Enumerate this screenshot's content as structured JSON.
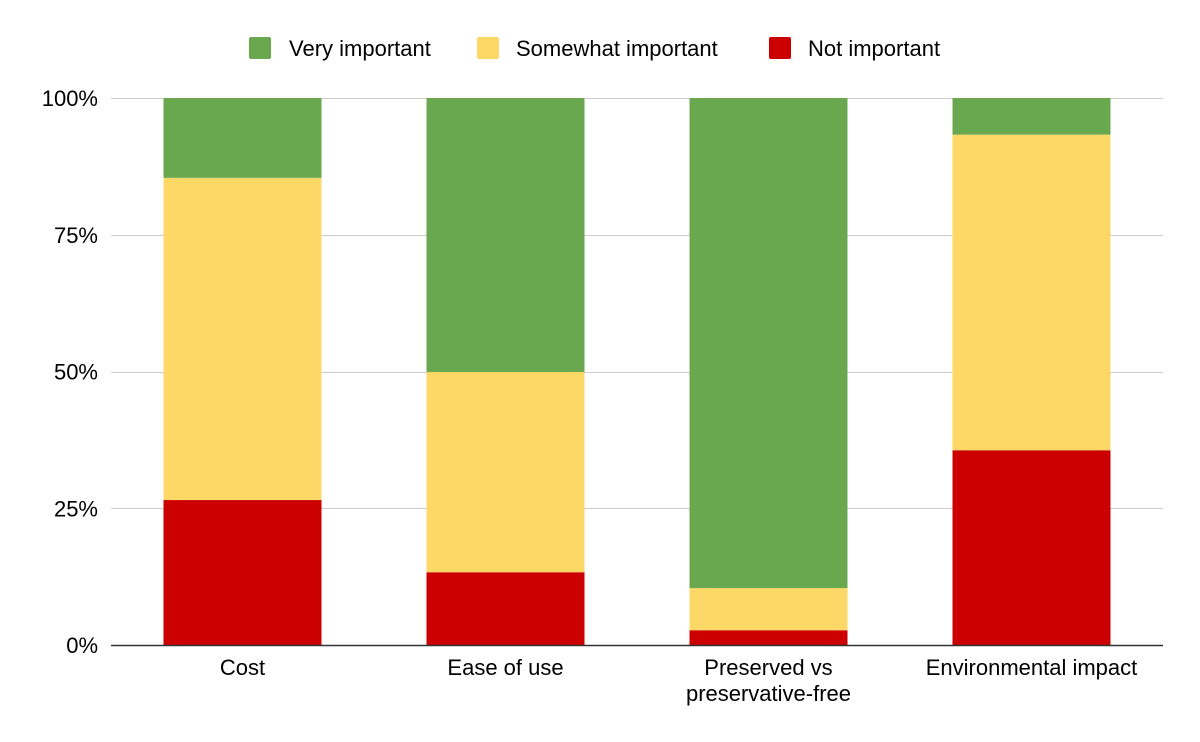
{
  "chart_data": {
    "type": "bar",
    "stacked": true,
    "normalized": true,
    "categories": [
      [
        "Cost"
      ],
      [
        "Ease of use"
      ],
      [
        "Preserved vs",
        "preservative-free"
      ],
      [
        "Environmental impact"
      ]
    ],
    "series": [
      {
        "name": "Not important",
        "color": "#cc0000",
        "values": [
          26.5,
          13.3,
          2.7,
          35.6
        ]
      },
      {
        "name": "Somewhat important",
        "color": "#fdd866",
        "values": [
          58.9,
          36.6,
          7.7,
          57.7
        ]
      },
      {
        "name": "Very important",
        "color": "#6aa84f",
        "values": [
          14.6,
          50.1,
          89.6,
          6.7
        ]
      }
    ],
    "legend_order": [
      "Very important",
      "Somewhat important",
      "Not important"
    ],
    "legend_position": "top",
    "y_ticks": [
      "0%",
      "25%",
      "50%",
      "75%",
      "100%"
    ],
    "y_tick_values": [
      0,
      25,
      50,
      75,
      100
    ],
    "ylim": [
      0,
      100
    ],
    "grid": true,
    "gridline_color": "#cccccc",
    "axis_color": "#333333"
  }
}
